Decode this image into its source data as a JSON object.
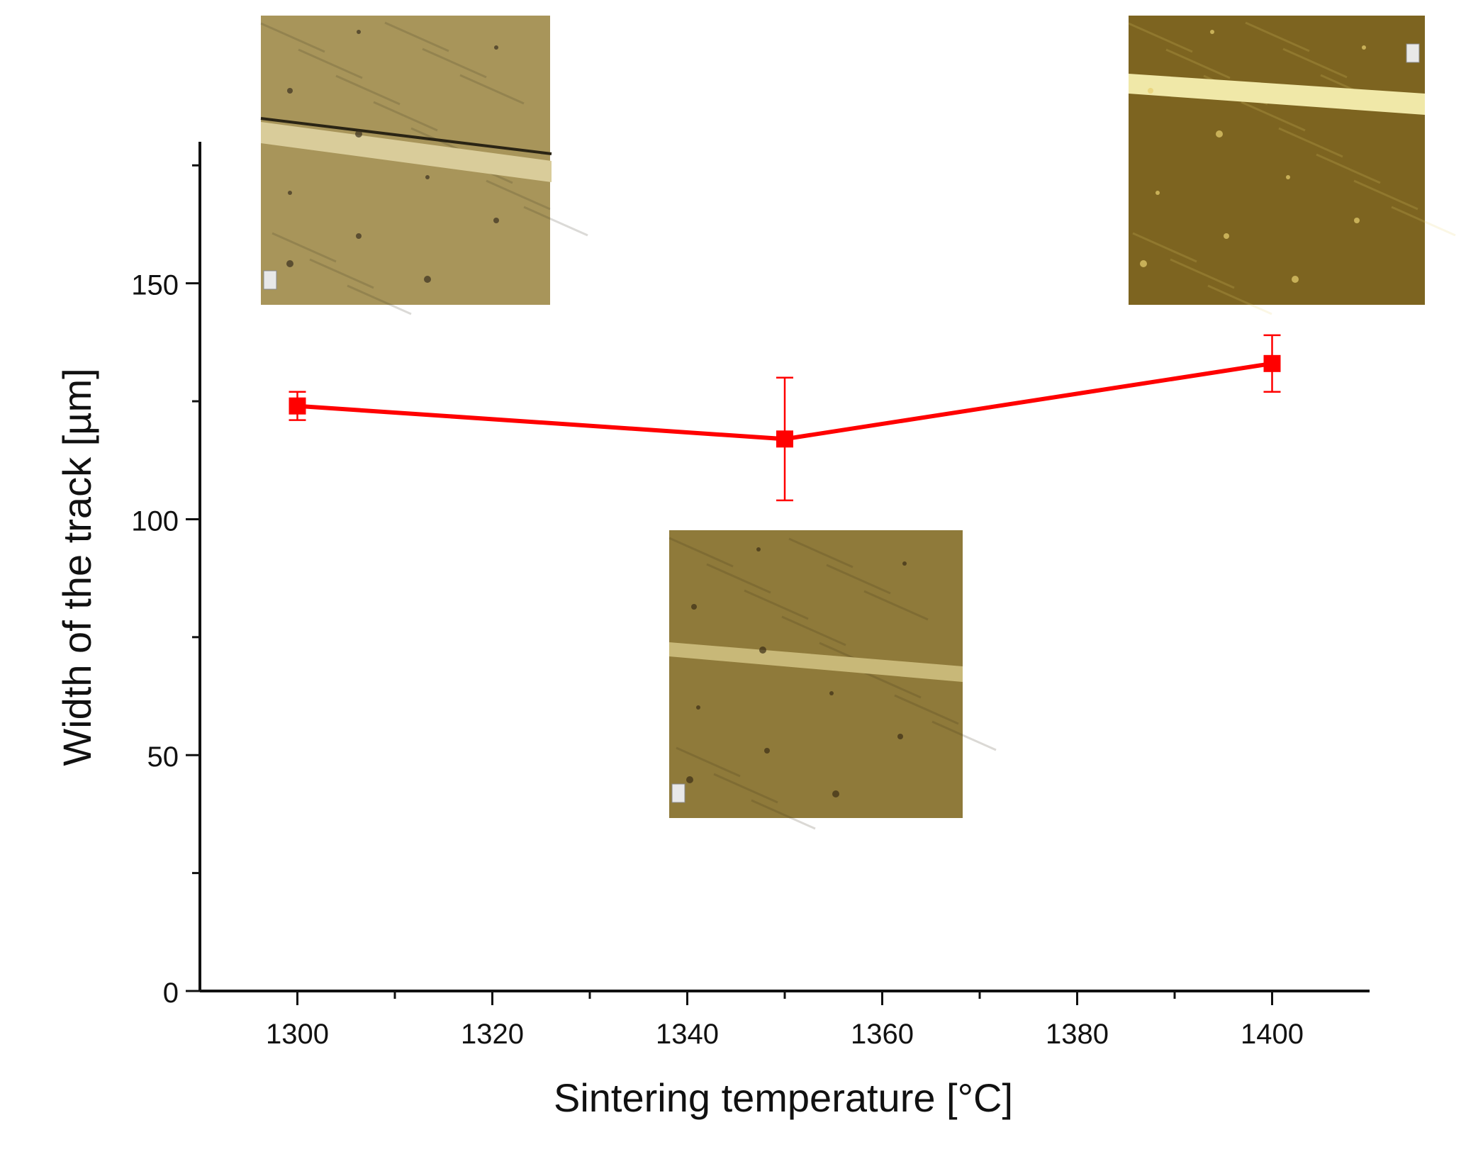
{
  "chart_data": {
    "type": "line",
    "xlabel": "Sintering temperature [°C]",
    "ylabel": "Width of the track [µm]",
    "xlim": [
      1290,
      1410
    ],
    "ylim": [
      0,
      180
    ],
    "x_ticks": [
      1300,
      1320,
      1340,
      1360,
      1380,
      1400
    ],
    "x_tick_labels": [
      "1300",
      "1320",
      "1340",
      "1360",
      "1380",
      "1400"
    ],
    "y_ticks": [
      0,
      50,
      100,
      150
    ],
    "y_tick_labels": [
      "0",
      "50",
      "100",
      "150"
    ],
    "grid": false,
    "legend": "none",
    "series": [
      {
        "x": [
          1300,
          1350,
          1400
        ],
        "y": [
          124,
          117,
          133
        ],
        "error": [
          3,
          13,
          6
        ],
        "color": "#ff0000",
        "marker": "square"
      }
    ],
    "insets": [
      {
        "x": 1300,
        "image": "micrograph",
        "background": "#a8955a",
        "track_color": "#d9cc9a",
        "speck_color": "#3a3020"
      },
      {
        "x": 1350,
        "image": "micrograph",
        "background": "#8f7a3a",
        "track_color": "#c8b878",
        "speck_color": "#3a2e15"
      },
      {
        "x": 1400,
        "image": "micrograph",
        "background": "#7d6420",
        "track_color": "#f0e8a8",
        "speck_color": "#e8d070"
      }
    ]
  }
}
